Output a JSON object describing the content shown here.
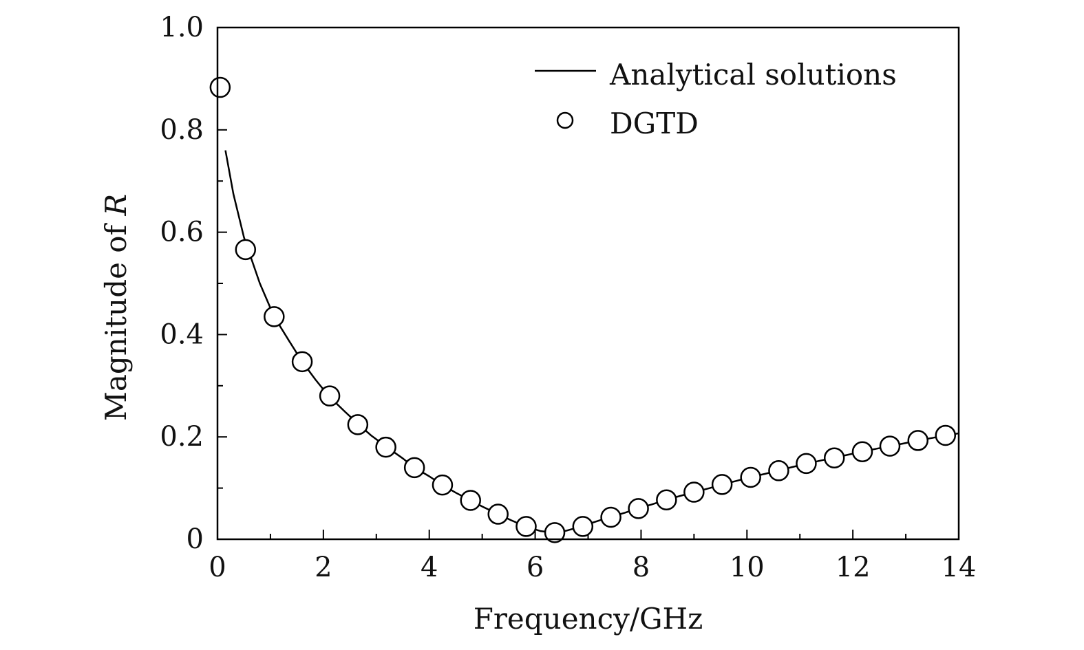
{
  "chart_data": {
    "type": "line",
    "xlabel": "Frequency/GHz",
    "ylabel_prefix": "Magnitude of ",
    "ylabel_symbol": "R",
    "xlim": [
      0,
      14
    ],
    "ylim": [
      0,
      1.0
    ],
    "xticks": [
      0,
      2,
      4,
      6,
      8,
      10,
      12,
      14
    ],
    "xtick_labels": [
      "0",
      "2",
      "4",
      "6",
      "8",
      "10",
      "12",
      "14"
    ],
    "yticks": [
      0,
      0.2,
      0.4,
      0.6,
      0.8,
      1.0
    ],
    "ytick_labels": [
      "0",
      "0.2",
      "0.4",
      "0.6",
      "0.8",
      "1.0"
    ],
    "x_minor_step": 1,
    "y_minor_step": 0.1,
    "grid": false,
    "legend_position": "top-right",
    "series": [
      {
        "name": "Analytical solutions",
        "style": "line",
        "color": "#000000",
        "x": [
          0.15,
          0.3,
          0.5,
          0.8,
          1.07,
          1.35,
          1.6,
          1.85,
          2.1,
          2.4,
          2.67,
          2.9,
          3.2,
          3.5,
          3.72,
          4.0,
          4.25,
          4.5,
          4.78,
          5.0,
          5.3,
          5.55,
          5.82,
          6.1,
          6.35,
          6.6,
          6.87,
          7.1,
          7.4,
          7.7,
          7.93,
          8.2,
          8.47,
          8.75,
          9.0,
          9.3,
          9.53,
          9.8,
          10.05,
          10.35,
          10.58,
          10.85,
          11.1,
          11.4,
          11.63,
          11.9,
          12.17,
          12.45,
          12.7,
          12.95,
          13.23,
          13.5,
          13.75,
          14.0
        ],
        "y": [
          0.76,
          0.675,
          0.59,
          0.5,
          0.435,
          0.388,
          0.347,
          0.312,
          0.28,
          0.25,
          0.224,
          0.203,
          0.18,
          0.158,
          0.14,
          0.123,
          0.106,
          0.091,
          0.076,
          0.064,
          0.049,
          0.037,
          0.025,
          0.016,
          0.013,
          0.017,
          0.025,
          0.033,
          0.043,
          0.052,
          0.06,
          0.068,
          0.077,
          0.085,
          0.092,
          0.1,
          0.107,
          0.114,
          0.121,
          0.128,
          0.134,
          0.141,
          0.147,
          0.154,
          0.159,
          0.165,
          0.171,
          0.177,
          0.182,
          0.187,
          0.193,
          0.198,
          0.203,
          0.207
        ]
      },
      {
        "name": "DGTD",
        "style": "markers",
        "marker": "open-circle",
        "color": "#000000",
        "x": [
          0.05,
          0.53,
          1.07,
          1.6,
          2.12,
          2.65,
          3.18,
          3.72,
          4.25,
          4.78,
          5.3,
          5.83,
          6.37,
          6.9,
          7.43,
          7.95,
          8.48,
          9.0,
          9.53,
          10.07,
          10.6,
          11.12,
          11.65,
          12.18,
          12.7,
          13.23,
          13.75
        ],
        "y": [
          0.883,
          0.566,
          0.435,
          0.347,
          0.28,
          0.224,
          0.18,
          0.14,
          0.106,
          0.076,
          0.049,
          0.025,
          0.013,
          0.025,
          0.043,
          0.06,
          0.077,
          0.092,
          0.107,
          0.121,
          0.134,
          0.148,
          0.159,
          0.171,
          0.182,
          0.193,
          0.203
        ]
      }
    ]
  }
}
